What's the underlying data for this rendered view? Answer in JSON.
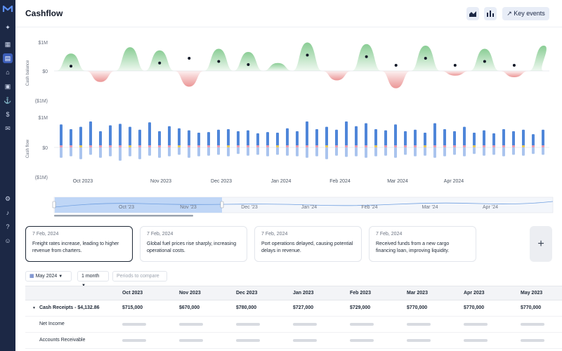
{
  "app": {
    "title": "Cashflow"
  },
  "toolbar": {
    "key_events_label": "Key events"
  },
  "sidebar": {
    "icons": [
      "logo-icon",
      "sparkle-icon",
      "grid-icon",
      "ledger-icon",
      "bank-icon",
      "wallet-icon",
      "anchor-icon",
      "dollar-icon",
      "inbox-icon",
      "gear-icon",
      "bell-icon",
      "help-icon",
      "user-icon"
    ]
  },
  "balance_chart": {
    "ylabel": "Cash balance",
    "ticks": [
      "$1M",
      "$0",
      "($1M)"
    ]
  },
  "flow_chart": {
    "ylabel": "Cash flow",
    "ticks": [
      "$1M",
      "$0",
      "($1M)"
    ],
    "months": [
      "Oct 2023",
      "Nov 2023",
      "Dec 2023",
      "Jan 2024",
      "Feb 2024",
      "Mar 2024",
      "Apr 2024"
    ]
  },
  "navigator": {
    "labels": [
      "Oct '23",
      "Nov '23",
      "Dec '23",
      "Jan '24",
      "Feb '24",
      "Mar '24",
      "Apr '24"
    ]
  },
  "events": [
    {
      "date": "7 Feb, 2024",
      "text": "Freight rates increase, leading to higher revenue from charters."
    },
    {
      "date": "7 Feb, 2024",
      "text": "Global fuel prices rise sharply, increasing operational costs."
    },
    {
      "date": "7 Feb, 2024",
      "text": "Port operations delayed, causing potential delays in revenue."
    },
    {
      "date": "7 Feb, 2024",
      "text": "Received funds from a new cargo financing loan, improving liquidity."
    }
  ],
  "add_event_label": "+",
  "controls": {
    "period": "May 2024",
    "interval": "1 month",
    "compare_placeholder": "Periods to compare"
  },
  "table": {
    "columns": [
      "Oct 2023",
      "Nov 2023",
      "Dec 2023",
      "Jan 2023",
      "Feb 2023",
      "Mar 2023",
      "Apr 2023",
      "May 2023"
    ],
    "rows": [
      {
        "label": "Cash Receipts - $4,132.86",
        "values": [
          "$715,000",
          "$670,000",
          "$780,000",
          "$727,000",
          "$729,000",
          "$770,000",
          "$770,000",
          "$770,000"
        ]
      },
      {
        "label": "Net Income"
      },
      {
        "label": "Accounts Receivable"
      }
    ]
  },
  "chart_data": [
    {
      "type": "area",
      "ylabel": "Cash balance",
      "ylim": [
        -1,
        1
      ],
      "ytick_labels": [
        "$1M",
        "$0",
        "($1M)"
      ],
      "values": [
        0.05,
        0.55,
        0.05,
        -0.35,
        0.05,
        0.75,
        0.05,
        0.65,
        0.05,
        -0.5,
        0.05,
        0.7,
        0.05,
        0.6,
        0.05,
        0.25,
        0.05,
        0.9,
        0.05,
        -0.3,
        0.05,
        0.85,
        0.05,
        -0.55,
        0.05,
        0.8,
        0.05,
        -0.15,
        0.05,
        0.7,
        0.05,
        -0.2,
        0.05,
        0.8
      ]
    },
    {
      "type": "bar",
      "ylabel": "Cash flow",
      "ylim": [
        -1,
        1
      ],
      "ytick_labels": [
        "$1M",
        "$0",
        "($1M)"
      ],
      "x_labels": [
        "Oct 2023",
        "Nov 2023",
        "Dec 2023",
        "Jan 2024",
        "Feb 2024",
        "Mar 2024",
        "Apr 2024"
      ],
      "series": [
        {
          "values": [
            0.78,
            0.62,
            0.7,
            0.88,
            0.55,
            0.75,
            0.8,
            0.7,
            0.6,
            0.85,
            0.55,
            0.72,
            0.65,
            0.58,
            0.5,
            0.52,
            0.6,
            0.62,
            0.55,
            0.58,
            0.48,
            0.52,
            0.5,
            0.65,
            0.55,
            0.88,
            0.62,
            0.7,
            0.6,
            0.88,
            0.72,
            0.82,
            0.62,
            0.58,
            0.78,
            0.55,
            0.6,
            0.5,
            0.82,
            0.62,
            0.55,
            0.7,
            0.5,
            0.58,
            0.48,
            0.62,
            0.55,
            0.6,
            0.45,
            0.6
          ]
        },
        {
          "values": [
            -0.35,
            -0.3,
            -0.4,
            -0.25,
            -0.35,
            -0.3,
            -0.45,
            -0.3,
            -0.4,
            -0.28,
            -0.35,
            -0.3,
            -0.25,
            -0.35,
            -0.3,
            -0.28,
            -0.25,
            -0.3,
            -0.22,
            -0.28,
            -0.25,
            -0.3,
            -0.25,
            -0.28,
            -0.3,
            -0.35,
            -0.3,
            -0.4,
            -0.28,
            -0.32,
            -0.3,
            -0.35,
            -0.3,
            -0.28,
            -0.35,
            -0.25,
            -0.3,
            -0.28,
            -0.35,
            -0.3,
            -0.25,
            -0.3,
            -0.22,
            -0.28,
            -0.25,
            -0.3,
            -0.25,
            -0.28,
            -0.22,
            -0.25
          ]
        }
      ]
    }
  ]
}
